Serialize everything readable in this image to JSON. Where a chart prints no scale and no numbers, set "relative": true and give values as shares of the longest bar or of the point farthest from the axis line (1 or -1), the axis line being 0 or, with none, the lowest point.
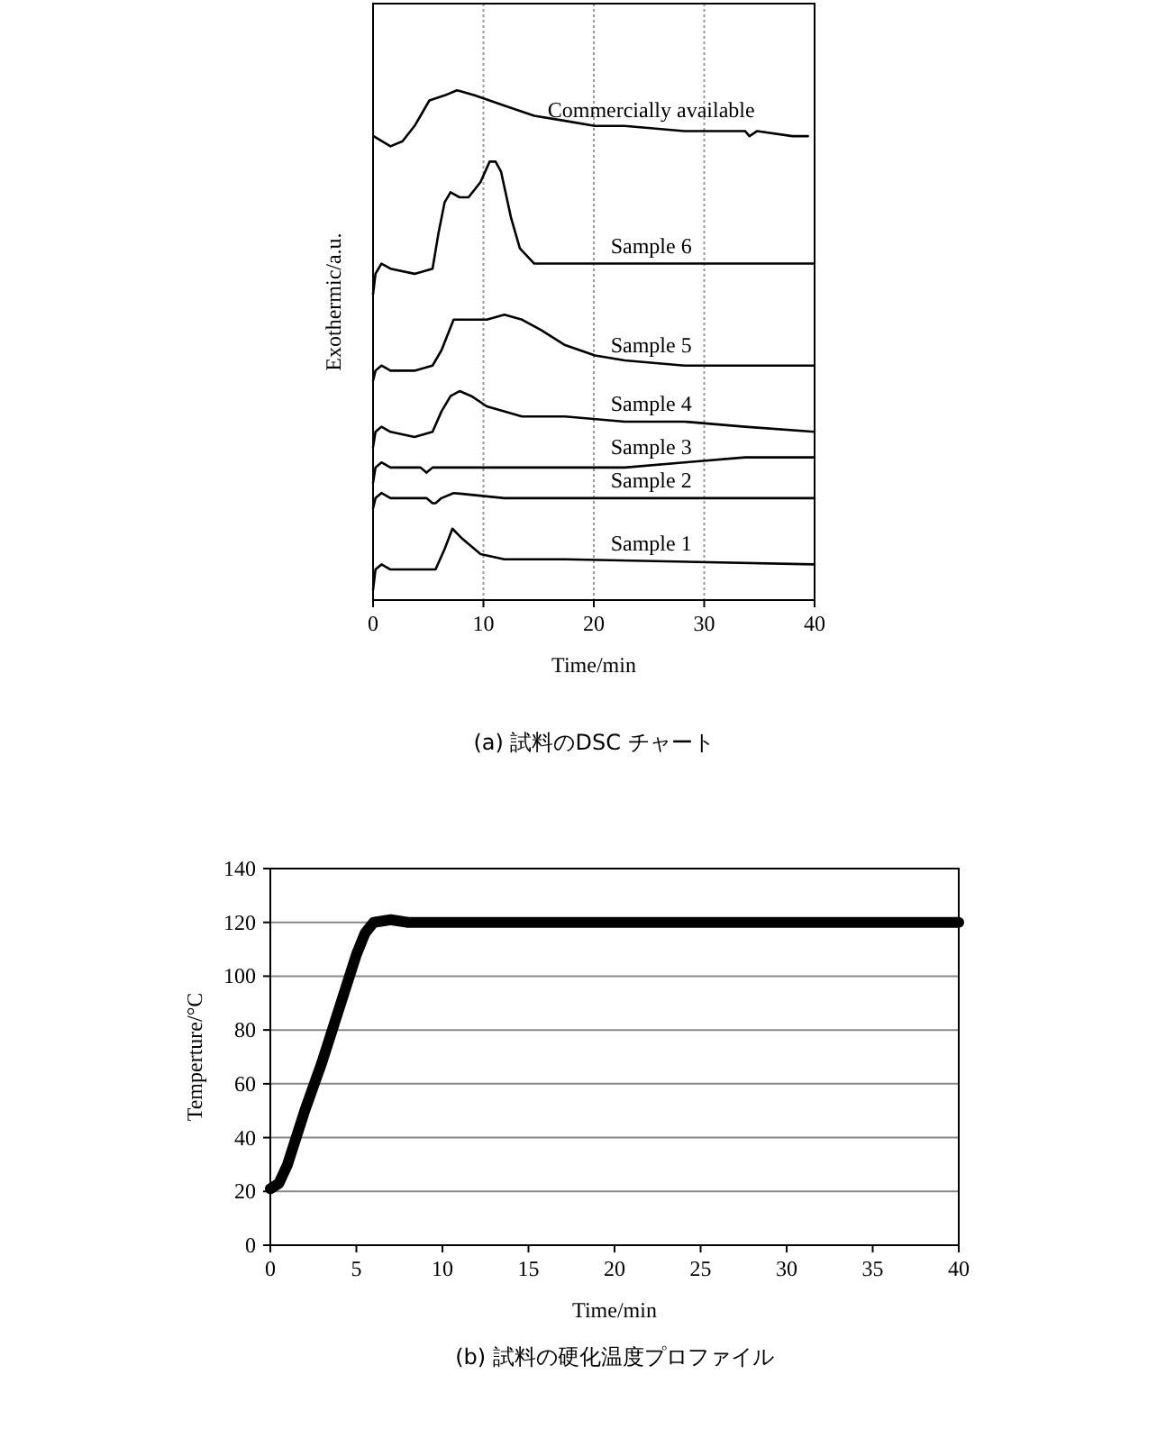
{
  "chart_data": [
    {
      "type": "line",
      "relative": true,
      "xlabel": "Time/min",
      "ylabel": "Exothermic/a.u.",
      "xlim": [
        0,
        40
      ],
      "xticks": [
        0,
        10,
        20,
        30,
        40
      ],
      "grid": "x",
      "annotations": [
        "(a) 試料のDSC チャート"
      ],
      "series": [
        {
          "name": "Commercially available",
          "color": "#000000",
          "x": [
            0.05,
            1.58,
            2.67,
            3.76,
            4.3,
            5.1,
            6.5,
            7.6,
            9.2,
            11.9,
            14.6,
            17.4,
            20.1,
            22.8,
            28.2,
            33.7,
            34.1,
            34.8,
            38.0,
            39.4
          ],
          "values": [
            0.91,
            0.89,
            0.9,
            0.93,
            0.95,
            0.98,
            0.99,
            1.0,
            0.99,
            0.97,
            0.95,
            0.94,
            0.93,
            0.93,
            0.92,
            0.92,
            0.91,
            0.92,
            0.91,
            0.91
          ]
        },
        {
          "name": "Sample 6",
          "color": "#000000",
          "x": [
            0,
            0.22,
            0.76,
            1.58,
            3.76,
            5.39,
            5.93,
            6.48,
            7.02,
            7.84,
            8.65,
            9.74,
            10.56,
            11.1,
            11.6,
            12.5,
            13.3,
            14.6,
            20.1,
            40
          ],
          "values": [
            0.6,
            0.64,
            0.66,
            0.65,
            0.64,
            0.65,
            0.72,
            0.78,
            0.8,
            0.79,
            0.79,
            0.82,
            0.86,
            0.86,
            0.84,
            0.75,
            0.69,
            0.66,
            0.66,
            0.66
          ]
        },
        {
          "name": "Sample 5",
          "color": "#000000",
          "x": [
            0,
            0.22,
            0.76,
            1.58,
            3.76,
            5.39,
            6.2,
            7.3,
            8.65,
            10.3,
            11.9,
            13.5,
            15.2,
            17.4,
            20.1,
            22.8,
            28.2,
            40
          ],
          "values": [
            0.43,
            0.45,
            0.46,
            0.45,
            0.45,
            0.46,
            0.49,
            0.55,
            0.55,
            0.55,
            0.56,
            0.55,
            0.53,
            0.5,
            0.48,
            0.47,
            0.46,
            0.46
          ]
        },
        {
          "name": "Sample 4",
          "color": "#000000",
          "x": [
            0,
            0.22,
            0.76,
            1.58,
            3.76,
            5.39,
            6.2,
            7.02,
            7.84,
            8.92,
            10.3,
            13.5,
            17.4,
            22.8,
            28.2,
            33.7,
            40
          ],
          "values": [
            0.3,
            0.33,
            0.34,
            0.33,
            0.32,
            0.33,
            0.37,
            0.4,
            0.41,
            0.4,
            0.38,
            0.36,
            0.36,
            0.35,
            0.35,
            0.34,
            0.33
          ]
        },
        {
          "name": "Sample 3",
          "color": "#000000",
          "x": [
            0,
            0.22,
            0.76,
            1.58,
            3.76,
            4.3,
            4.84,
            5.39,
            5.93,
            11.9,
            22.8,
            28.2,
            33.7,
            40
          ],
          "values": [
            0.23,
            0.26,
            0.27,
            0.26,
            0.26,
            0.26,
            0.25,
            0.26,
            0.26,
            0.26,
            0.26,
            0.27,
            0.28,
            0.28
          ]
        },
        {
          "name": "Sample 2",
          "color": "#000000",
          "x": [
            0,
            0.22,
            0.76,
            1.58,
            3.76,
            4.84,
            5.39,
            5.66,
            6.2,
            7.3,
            11.9,
            40
          ],
          "values": [
            0.18,
            0.2,
            0.21,
            0.2,
            0.2,
            0.2,
            0.19,
            0.19,
            0.2,
            0.21,
            0.2,
            0.2
          ]
        },
        {
          "name": "Sample 1",
          "color": "#000000",
          "x": [
            0,
            0.22,
            0.76,
            1.58,
            3.76,
            5.66,
            6.48,
            7.19,
            8.1,
            9.74,
            11.9,
            17.4,
            40
          ],
          "values": [
            0.02,
            0.06,
            0.07,
            0.06,
            0.06,
            0.06,
            0.1,
            0.14,
            0.12,
            0.09,
            0.08,
            0.08,
            0.07
          ]
        }
      ]
    },
    {
      "type": "line",
      "xlabel": "Time/min",
      "ylabel": "Temperture/°C",
      "xlim": [
        0,
        40
      ],
      "xticks": [
        0,
        5,
        10,
        15,
        20,
        25,
        30,
        35,
        40
      ],
      "ylim": [
        0,
        140
      ],
      "yticks": [
        0,
        20,
        40,
        60,
        80,
        100,
        120,
        140
      ],
      "grid": "y",
      "annotations": [
        "(b) 試料の硬化温度プロファイル"
      ],
      "series": [
        {
          "color": "#000000",
          "x": [
            0,
            0.5,
            1,
            2,
            3,
            4,
            5,
            5.5,
            6,
            7,
            8,
            10,
            20,
            40
          ],
          "values": [
            21,
            23,
            30,
            50,
            68,
            88,
            108,
            116,
            120,
            121,
            120,
            120,
            120,
            120
          ]
        }
      ]
    }
  ]
}
